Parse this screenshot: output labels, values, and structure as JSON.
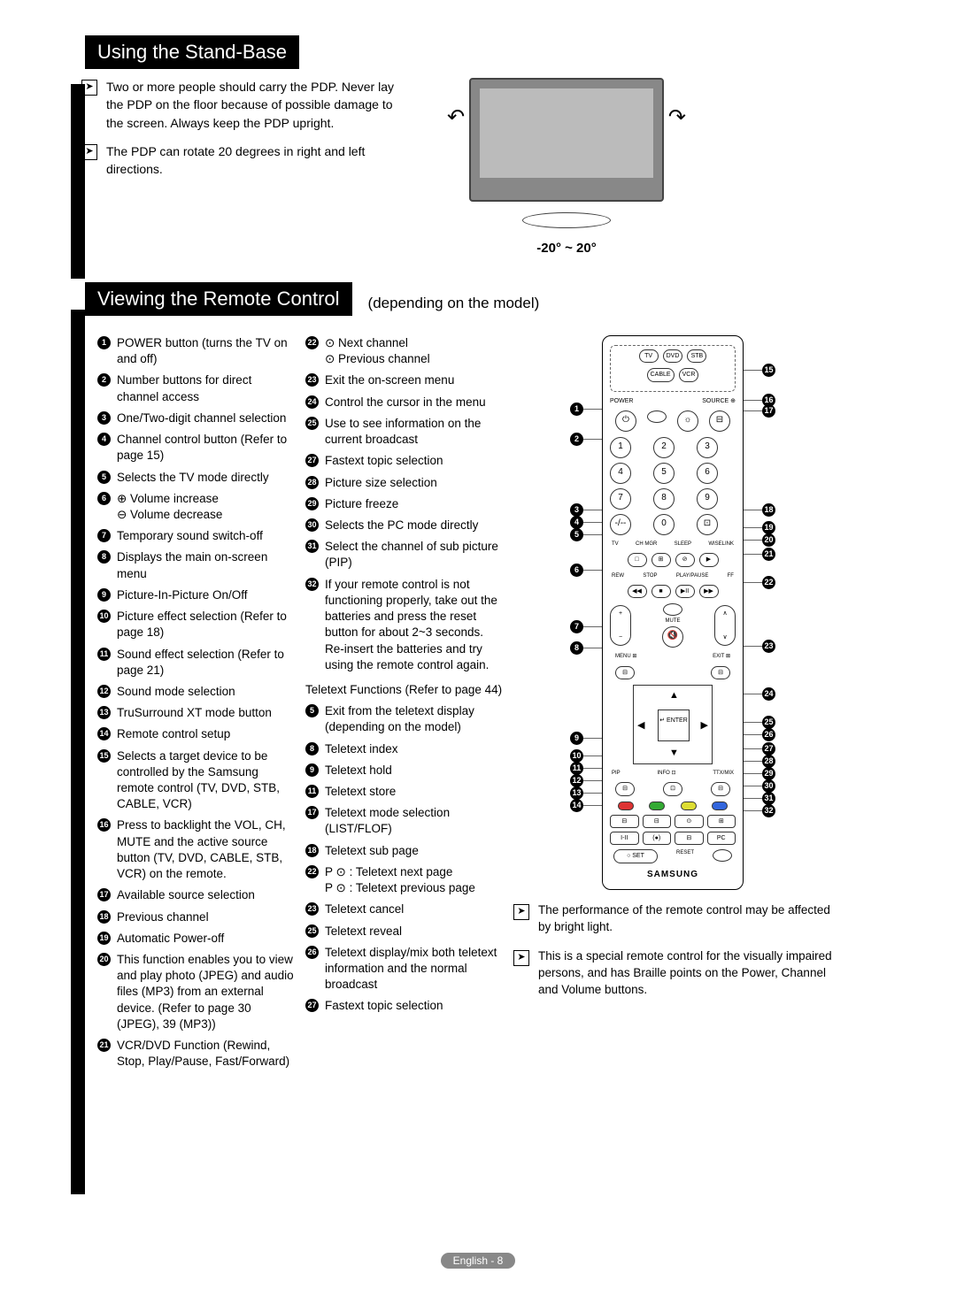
{
  "page": {
    "footer_lang": "English",
    "footer_page": "8"
  },
  "standbase": {
    "title": "Using the Stand-Base",
    "note1": "Two or more people should carry the PDP. Never lay the PDP on the floor because of possible damage to the screen. Always keep the PDP upright.",
    "note2": "The PDP can rotate 20 degrees in right and left directions.",
    "rotation_label": "-20° ~ 20°"
  },
  "remote": {
    "title": "Viewing the Remote Control",
    "model_note": "(depending on the model)",
    "col1": [
      {
        "n": "1",
        "t": "POWER button (turns the TV on and off)"
      },
      {
        "n": "2",
        "t": "Number buttons for direct channel access"
      },
      {
        "n": "3",
        "t": "One/Two-digit channel selection"
      },
      {
        "n": "4",
        "t": "Channel control button (Refer to page 15)"
      },
      {
        "n": "5",
        "t": "Selects the TV mode directly"
      },
      {
        "n": "6",
        "t": "⊕ Volume increase\n⊖ Volume decrease"
      },
      {
        "n": "7",
        "t": "Temporary sound switch-off"
      },
      {
        "n": "8",
        "t": "Displays the main on-screen menu"
      },
      {
        "n": "9",
        "t": "Picture-In-Picture On/Off"
      },
      {
        "n": "10",
        "t": "Picture effect selection (Refer to page 18)"
      },
      {
        "n": "11",
        "t": "Sound effect selection (Refer to page 21)"
      },
      {
        "n": "12",
        "t": "Sound mode selection"
      },
      {
        "n": "13",
        "t": "TruSurround XT mode button"
      },
      {
        "n": "14",
        "t": "Remote control setup"
      },
      {
        "n": "15",
        "t": "Selects a target device to be controlled by the Samsung remote control (TV, DVD, STB, CABLE, VCR)"
      },
      {
        "n": "16",
        "t": "Press to backlight the VOL, CH, MUTE and the active source button (TV, DVD, CABLE, STB, VCR) on the remote."
      },
      {
        "n": "17",
        "t": "Available source selection"
      },
      {
        "n": "18",
        "t": "Previous channel"
      },
      {
        "n": "19",
        "t": "Automatic Power-off"
      },
      {
        "n": "20",
        "t": "This function enables you to view and play photo (JPEG) and audio files (MP3) from an external device. (Refer to page 30 (JPEG), 39 (MP3))"
      },
      {
        "n": "21",
        "t": "VCR/DVD Function (Rewind, Stop, Play/Pause, Fast/Forward)"
      }
    ],
    "col2_top": [
      {
        "n": "22",
        "t": "⊙ Next channel\n⊙ Previous channel"
      },
      {
        "n": "23",
        "t": "Exit the on-screen menu"
      },
      {
        "n": "24",
        "t": "Control the cursor in the menu"
      },
      {
        "n": "25",
        "t": "Use to see information on the current broadcast"
      },
      {
        "n": "27",
        "t": "Fastext topic selection"
      },
      {
        "n": "28",
        "t": "Picture size selection"
      },
      {
        "n": "29",
        "t": "Picture freeze"
      },
      {
        "n": "30",
        "t": "Selects the PC mode directly"
      },
      {
        "n": "31",
        "t": "Select the channel of sub picture (PIP)"
      },
      {
        "n": "32",
        "t": "If your remote control is not functioning properly, take out the batteries and press the reset button for about 2~3 seconds. Re-insert the batteries and try using the remote control again."
      }
    ],
    "teletext_heading": "Teletext Functions (Refer to page 44)",
    "col2_bottom": [
      {
        "n": "5",
        "t": "Exit from the teletext display (depending on the model)"
      },
      {
        "n": "8",
        "t": "Teletext index"
      },
      {
        "n": "9",
        "t": "Teletext hold"
      },
      {
        "n": "11",
        "t": "Teletext store"
      },
      {
        "n": "17",
        "t": "Teletext mode selection (LIST/FLOF)"
      },
      {
        "n": "18",
        "t": "Teletext sub page"
      },
      {
        "n": "22",
        "t": "P ⊙ : Teletext next page\nP ⊙ : Teletext previous page"
      },
      {
        "n": "23",
        "t": "Teletext cancel"
      },
      {
        "n": "25",
        "t": "Teletext reveal"
      },
      {
        "n": "26",
        "t": "Teletext display/mix both teletext information and the normal broadcast"
      },
      {
        "n": "27",
        "t": "Fastext topic selection"
      }
    ],
    "col3_notes": [
      "The performance of the remote control may be affected by bright light.",
      "This is a special remote control for the visually impaired persons, and has Braille points on the Power, Channel and Volume buttons."
    ],
    "diagram": {
      "brand": "SAMSUNG",
      "enter": "↵\nENTER",
      "left_labels": [
        "1",
        "2",
        "3",
        "4",
        "5",
        "6",
        "7",
        "8",
        "9",
        "10",
        "11",
        "12",
        "13",
        "14"
      ],
      "right_labels": [
        "15",
        "16",
        "17",
        "18",
        "19",
        "20",
        "21",
        "22",
        "23",
        "24",
        "25",
        "26",
        "27",
        "28",
        "29",
        "30",
        "31",
        "32"
      ]
    }
  }
}
